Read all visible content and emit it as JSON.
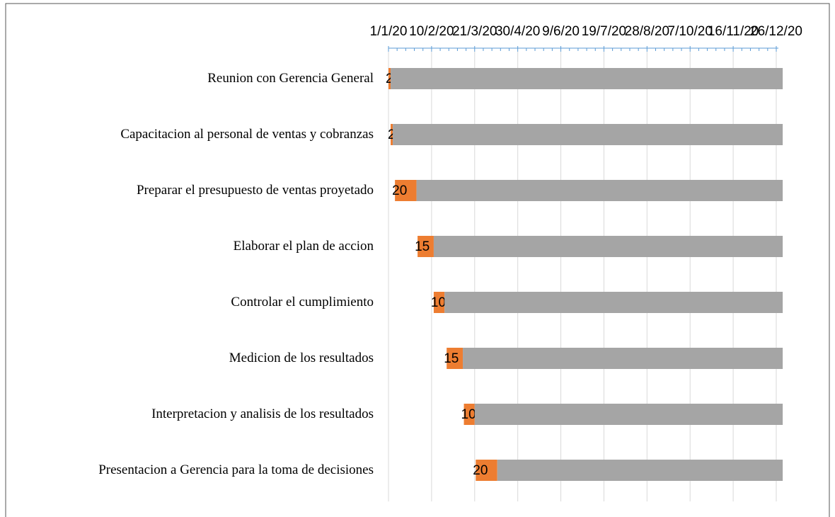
{
  "chart_data": {
    "type": "gantt",
    "categories": [
      "Reunion con Gerencia General",
      "Capacitacion al personal de ventas y cobranzas",
      "Preparar el presupuesto de ventas proyetado",
      "Elaborar el plan de accion",
      "Controlar el cumplimiento",
      "Medicion de los resultados",
      "Interpretacion y analisis de los resultados",
      "Presentacion a Gerencia para la toma de decisiones"
    ],
    "series": [
      {
        "color": "none",
        "values": [
          0,
          2,
          6,
          27,
          42,
          54,
          70,
          81
        ]
      },
      {
        "color": "#ed7d31",
        "values": [
          2,
          2,
          20,
          15,
          10,
          15,
          10,
          20
        ],
        "data_labels": true
      },
      {
        "color": "#a5a5a5",
        "values": [
          364,
          362,
          340,
          324,
          314,
          297,
          286,
          265
        ]
      }
    ],
    "xlim": [
      0,
      360
    ],
    "xticks": [
      {
        "value": 0,
        "label": "1/1/20"
      },
      {
        "value": 40,
        "label": "10/2/20"
      },
      {
        "value": 80,
        "label": "21/3/20"
      },
      {
        "value": 120,
        "label": "30/4/20"
      },
      {
        "value": 160,
        "label": "9/6/20"
      },
      {
        "value": 200,
        "label": "19/7/20"
      },
      {
        "value": 240,
        "label": "28/8/20"
      },
      {
        "value": 280,
        "label": "7/10/20"
      },
      {
        "value": 320,
        "label": "16/11/20"
      },
      {
        "value": 360,
        "label": "26/12/20"
      }
    ],
    "grid": true
  }
}
